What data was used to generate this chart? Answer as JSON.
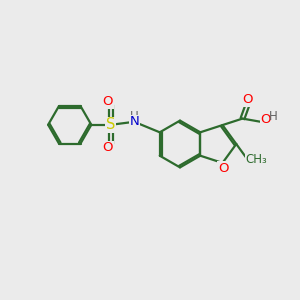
{
  "bg_color": "#ebebeb",
  "bond_color": "#2d6b2d",
  "line_width": 1.6,
  "atom_colors": {
    "O": "#ff0000",
    "N": "#0000cc",
    "S": "#cccc00",
    "C": "#2d6b2d",
    "H": "#606060"
  },
  "font_size": 9.5,
  "xlim": [
    0,
    10
  ],
  "ylim": [
    0,
    10
  ]
}
